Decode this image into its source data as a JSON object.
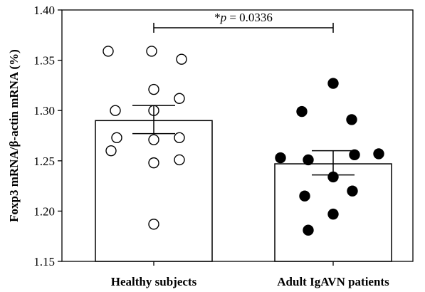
{
  "chart_data": {
    "type": "bar",
    "title": "",
    "xlabel": "",
    "ylabel": "Foxp3 mRNA/β-actin mRNA (%)",
    "ylim": [
      1.15,
      1.4
    ],
    "yticks": [
      "1.15",
      "1.20",
      "1.25",
      "1.30",
      "1.35",
      "1.40"
    ],
    "grid": false,
    "legend": "none",
    "categories": [
      "Healthy subjects",
      "Adult IgAVN patients"
    ],
    "values": [
      1.29,
      1.247
    ],
    "error": [
      [
        1.277,
        1.305
      ],
      [
        1.236,
        1.26
      ]
    ],
    "points": [
      {
        "category": "Healthy subjects",
        "style": "open",
        "values": [
          1.359,
          1.359,
          1.351,
          1.321,
          1.312,
          1.3,
          1.3,
          1.273,
          1.273,
          1.271,
          1.26,
          1.251,
          1.248,
          1.187
        ]
      },
      {
        "category": "Adult IgAVN patients",
        "style": "filled",
        "values": [
          1.327,
          1.299,
          1.291,
          1.257,
          1.256,
          1.253,
          1.251,
          1.234,
          1.22,
          1.215,
          1.197,
          1.181
        ]
      }
    ],
    "significance": {
      "prefix": "*",
      "p_symbol": "p",
      "value_text": " = 0.0336"
    },
    "colors": {
      "bar_fill": "#ffffff",
      "stroke": "#000000",
      "filled_point": "#000000",
      "open_point": "#ffffff"
    }
  }
}
